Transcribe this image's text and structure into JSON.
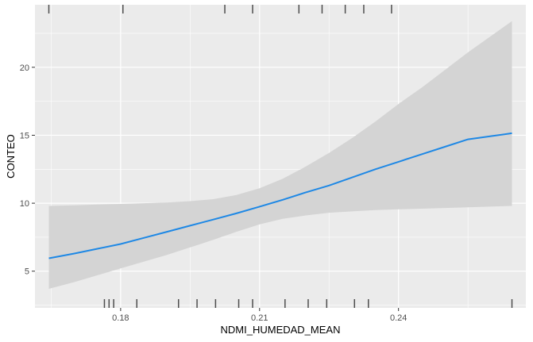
{
  "chart_data": {
    "type": "line",
    "title": "",
    "xlabel": "NDMI_HUMEDAD_MEAN",
    "ylabel": "CONTEO",
    "xlim": [
      0.1615,
      0.2675
    ],
    "ylim": [
      2.3,
      24.6
    ],
    "x_ticks": [
      0.18,
      0.21,
      0.24
    ],
    "x_tick_labels": [
      "0.18",
      "0.21",
      "0.24"
    ],
    "y_ticks": [
      5,
      10,
      15,
      20
    ],
    "y_tick_labels": [
      "5",
      "10",
      "15",
      "20"
    ],
    "grid": true,
    "legend": "none",
    "series": [
      {
        "x": [
          0.1645,
          0.17,
          0.175,
          0.18,
          0.185,
          0.19,
          0.195,
          0.2,
          0.205,
          0.21,
          0.215,
          0.22,
          0.225,
          0.23,
          0.235,
          0.24,
          0.245,
          0.25,
          0.255,
          0.2645
        ],
        "y": [
          5.95,
          6.3,
          6.65,
          7.0,
          7.45,
          7.9,
          8.35,
          8.8,
          9.25,
          9.75,
          10.25,
          10.8,
          11.3,
          11.9,
          12.5,
          13.05,
          13.6,
          14.15,
          14.7,
          15.15
        ],
        "lower": [
          3.7,
          4.2,
          4.7,
          5.2,
          5.7,
          6.2,
          6.75,
          7.3,
          7.9,
          8.45,
          8.85,
          9.1,
          9.3,
          9.4,
          9.5,
          9.55,
          9.6,
          9.65,
          9.7,
          9.8
        ],
        "upper": [
          9.8,
          9.85,
          9.9,
          9.95,
          10.0,
          10.05,
          10.15,
          10.3,
          10.6,
          11.1,
          11.8,
          12.7,
          13.7,
          14.8,
          16.0,
          17.3,
          18.5,
          19.8,
          21.1,
          23.4
        ]
      }
    ],
    "rug_top_x": [
      0.1645,
      0.1805,
      0.2025,
      0.2085,
      0.2185,
      0.2235,
      0.2285,
      0.2325,
      0.2385
    ],
    "rug_bottom_x": [
      0.1765,
      0.1775,
      0.1785,
      0.1835,
      0.1925,
      0.1965,
      0.2005,
      0.2055,
      0.2085,
      0.2155,
      0.2205,
      0.2245,
      0.2305,
      0.2335,
      0.2645
    ],
    "colors": {
      "panel": "#ebebeb",
      "grid_major": "#ffffff",
      "ribbon": "#d4d4d4",
      "line": "#1e88e5",
      "rug": "#4d4d4d"
    }
  }
}
